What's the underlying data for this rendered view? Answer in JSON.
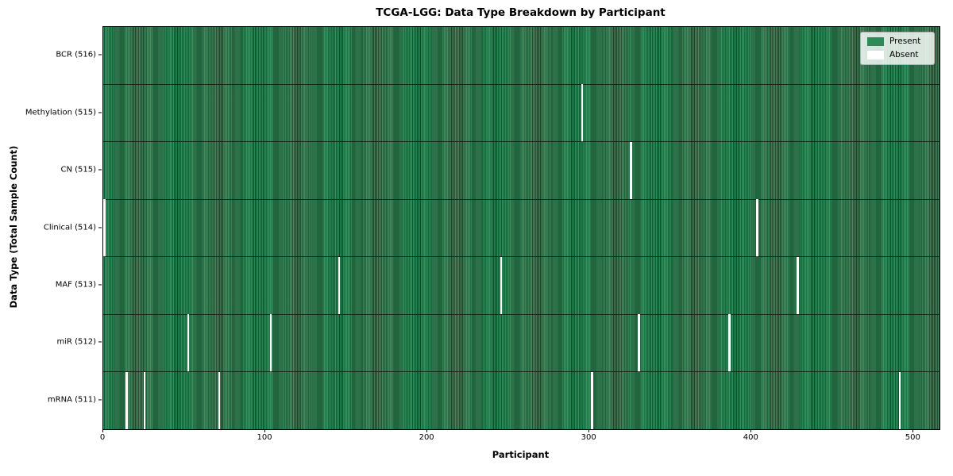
{
  "title": "TCGA-LGG: Data Type Breakdown by Participant",
  "legend": {
    "present_label": "Present",
    "absent_label": "Absent"
  },
  "colors": {
    "present": "#2e8b57",
    "present_edge": "#184a2d",
    "absent": "#ffffff",
    "row_divider": "rgba(8,28,18,0.8)",
    "legend_bg": "rgba(255,255,255,0.82)",
    "legend_border": "#b0b0b0"
  },
  "chart_data": {
    "type": "heatmap",
    "title": "TCGA-LGG: Data Type Breakdown by Participant",
    "xlabel": "Participant",
    "ylabel": "Data Type (Total Sample Count)",
    "x_ticks": [
      0,
      100,
      200,
      300,
      400,
      500
    ],
    "x_range": [
      0,
      516
    ],
    "total_participants": 516,
    "grid": false,
    "legend_position": "upper right",
    "legend_entries": [
      {
        "label": "Present",
        "color": "#2e8b57"
      },
      {
        "label": "Absent",
        "color": "#ffffff"
      }
    ],
    "rows": [
      {
        "label": "BCR (516)",
        "data_type": "BCR",
        "sample_count": 516,
        "absent_participants": []
      },
      {
        "label": "Methylation (515)",
        "data_type": "Methylation",
        "sample_count": 515,
        "absent_participants": [
          295
        ]
      },
      {
        "label": "CN (515)",
        "data_type": "CN",
        "sample_count": 515,
        "absent_participants": [
          325
        ]
      },
      {
        "label": "Clinical (514)",
        "data_type": "Clinical",
        "sample_count": 514,
        "absent_participants": [
          0,
          403
        ]
      },
      {
        "label": "MAF (513)",
        "data_type": "MAF",
        "sample_count": 513,
        "absent_participants": [
          145,
          245,
          428
        ]
      },
      {
        "label": "miR (512)",
        "data_type": "miR",
        "sample_count": 512,
        "absent_participants": [
          52,
          103,
          330,
          386
        ]
      },
      {
        "label": "mRNA (511)",
        "data_type": "mRNA",
        "sample_count": 511,
        "absent_participants": [
          14,
          25,
          71,
          301,
          491
        ]
      }
    ]
  }
}
